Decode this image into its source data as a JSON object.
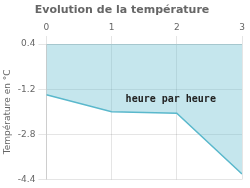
{
  "chart_data": {
    "type": "line",
    "title": "Evolution de la température",
    "y_label": "Température en °C",
    "x": [
      0,
      1,
      2,
      3
    ],
    "values": [
      -1.4,
      -2.0,
      -2.05,
      -4.2
    ],
    "color": "#5ab8cc",
    "xlim": [
      0,
      3
    ],
    "xticks": [
      0,
      1,
      2,
      3
    ],
    "ylim": [
      -4.4,
      0.4
    ],
    "yticks": [
      0.4,
      -1.2,
      -2.8,
      -4.4
    ],
    "grid": true,
    "annotations": [
      {
        "text": "heure par heure",
        "x": 2.6,
        "y": -1.55
      }
    ]
  }
}
